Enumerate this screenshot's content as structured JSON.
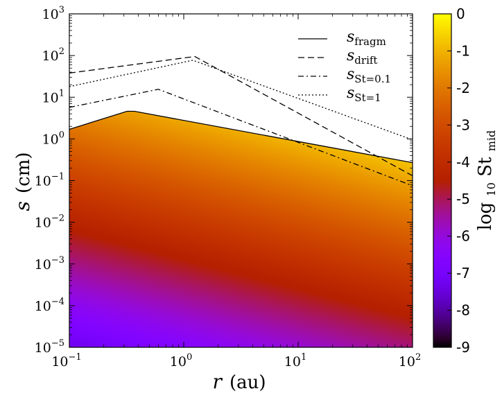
{
  "chart_data": {
    "type": "heatmap",
    "xscale": "log",
    "yscale": "log",
    "xlim": [
      0.1,
      100
    ],
    "ylim": [
      1e-05,
      1000
    ],
    "xlabel": "r (au)",
    "xlabel_var": "r",
    "xlabel_unit": "(au)",
    "ylabel": "s (cm)",
    "ylabel_var": "s",
    "ylabel_unit": "(cm)",
    "x_ticks": [
      {
        "value": 0.1,
        "base": "10",
        "exp": "−1"
      },
      {
        "value": 1,
        "base": "10",
        "exp": "0"
      },
      {
        "value": 10,
        "base": "10",
        "exp": "1"
      },
      {
        "value": 100,
        "base": "10",
        "exp": "2"
      }
    ],
    "y_ticks": [
      {
        "value": 1e-05,
        "base": "10",
        "exp": "−5"
      },
      {
        "value": 0.0001,
        "base": "10",
        "exp": "−4"
      },
      {
        "value": 0.001,
        "base": "10",
        "exp": "−3"
      },
      {
        "value": 0.01,
        "base": "10",
        "exp": "−2"
      },
      {
        "value": 0.1,
        "base": "10",
        "exp": "−1"
      },
      {
        "value": 1,
        "base": "10",
        "exp": "0"
      },
      {
        "value": 10,
        "base": "10",
        "exp": "1"
      },
      {
        "value": 100,
        "base": "10",
        "exp": "2"
      },
      {
        "value": 1000,
        "base": "10",
        "exp": "3"
      }
    ],
    "colorbar": {
      "label_main": "log",
      "label_sub": "10",
      "label_rest": " St",
      "label_rest_sub": "mid",
      "range": [
        -9,
        0
      ],
      "ticks": [
        "0",
        "-1",
        "-2",
        "-3",
        "-4",
        "-5",
        "-6",
        "-7",
        "-8",
        "-9"
      ],
      "colormap": "gnuplot"
    },
    "heatmap_model": {
      "description": "log10 St_mid = log10 s + a*log10 r + b",
      "slope_r": 0.7,
      "offset": -1.6
    },
    "series": [
      {
        "name": "s_fragm",
        "symbol": "s",
        "subscript": "fragm",
        "style": "solid",
        "points": [
          [
            0.1,
            1.7
          ],
          [
            0.32,
            4.6
          ],
          [
            0.37,
            4.6
          ],
          [
            100,
            0.27
          ]
        ]
      },
      {
        "name": "s_drift",
        "symbol": "s",
        "subscript": "drift",
        "style": "dashed",
        "points": [
          [
            0.1,
            38
          ],
          [
            1.25,
            95
          ],
          [
            100,
            0.13
          ]
        ]
      },
      {
        "name": "s_St=0.1",
        "symbol": "s",
        "subscript": "St=0.1",
        "style": "dashdot",
        "points": [
          [
            0.1,
            5.7
          ],
          [
            0.6,
            15.5
          ],
          [
            100,
            0.075
          ]
        ]
      },
      {
        "name": "s_St=1",
        "symbol": "s",
        "subscript": "St=1",
        "style": "dotted",
        "points": [
          [
            0.1,
            18
          ],
          [
            1.2,
            77
          ],
          [
            100,
            0.95
          ]
        ]
      }
    ],
    "legend_position": "top-right"
  }
}
